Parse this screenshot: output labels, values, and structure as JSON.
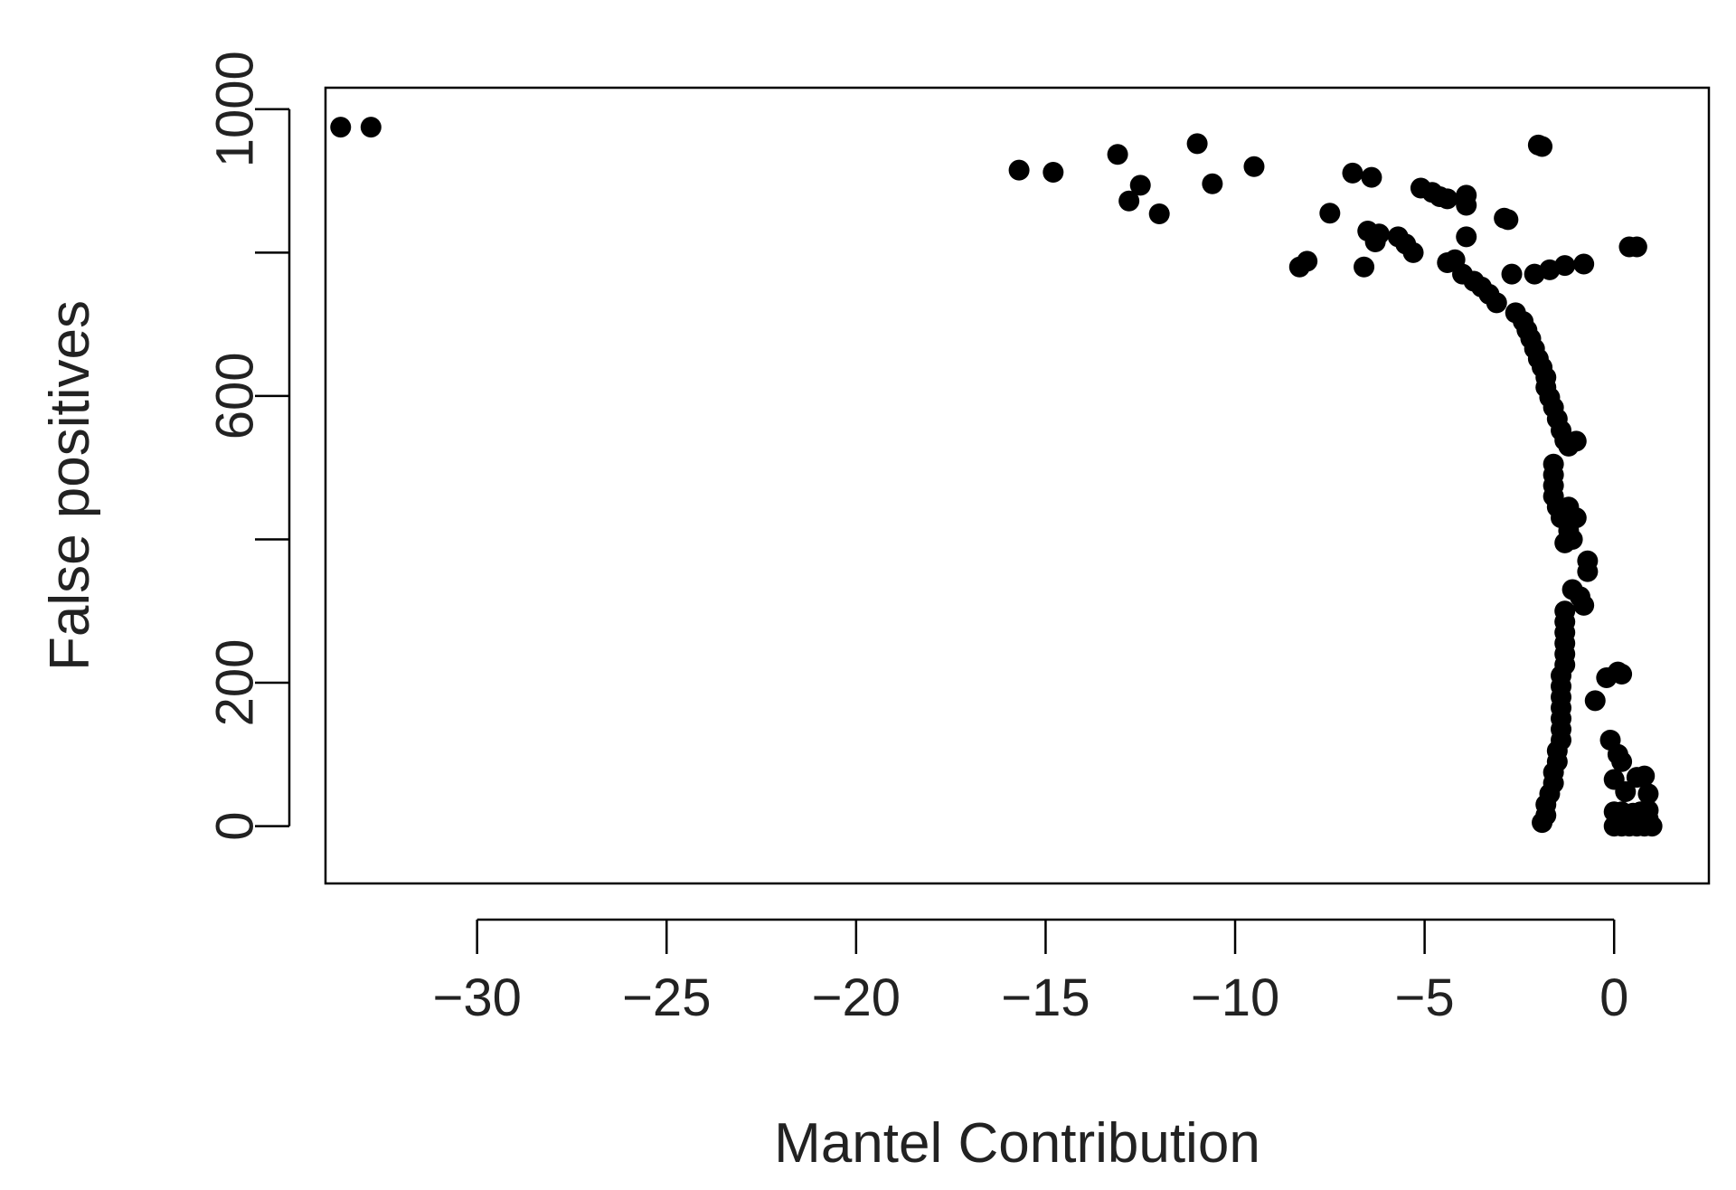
{
  "chart_data": {
    "type": "scatter",
    "xlabel": "Mantel Contribution",
    "ylabel": "False positives",
    "xlim": [
      -34,
      2.5
    ],
    "ylim": [
      -80,
      1030
    ],
    "xticks": [
      -30,
      -25,
      -20,
      -15,
      -10,
      -5,
      0
    ],
    "xtick_labels": [
      "−30",
      "−25",
      "−20",
      "−15",
      "−10",
      "−5",
      "0"
    ],
    "yticks": [
      0,
      200,
      400,
      600,
      800,
      1000
    ],
    "ytick_labels": [
      "0",
      "200",
      "",
      "600",
      "",
      "1000"
    ],
    "point_color": "#000000",
    "series": [
      {
        "values": [
          [
            -33.6,
            975
          ],
          [
            -32.8,
            975
          ],
          [
            -15.7,
            915
          ],
          [
            -14.8,
            912
          ],
          [
            -13.1,
            937
          ],
          [
            -12.8,
            872
          ],
          [
            -12.5,
            894
          ],
          [
            -12.0,
            854
          ],
          [
            -11.0,
            952
          ],
          [
            -10.6,
            896
          ],
          [
            -9.5,
            920
          ],
          [
            -8.3,
            780
          ],
          [
            -8.1,
            788
          ],
          [
            -7.5,
            855
          ],
          [
            -6.9,
            911
          ],
          [
            -6.6,
            780
          ],
          [
            -6.4,
            905
          ],
          [
            -6.5,
            830
          ],
          [
            -6.3,
            815
          ],
          [
            -6.2,
            826
          ],
          [
            -5.7,
            822
          ],
          [
            -5.5,
            812
          ],
          [
            -5.3,
            800
          ],
          [
            -5.1,
            890
          ],
          [
            -4.8,
            884
          ],
          [
            -4.6,
            878
          ],
          [
            -4.4,
            875
          ],
          [
            -4.4,
            786
          ],
          [
            -4.2,
            790
          ],
          [
            -4.0,
            770
          ],
          [
            -3.9,
            880
          ],
          [
            -3.9,
            866
          ],
          [
            -3.9,
            822
          ],
          [
            -3.7,
            760
          ],
          [
            -3.5,
            752
          ],
          [
            -3.3,
            742
          ],
          [
            -3.1,
            730
          ],
          [
            -2.9,
            848
          ],
          [
            -2.8,
            846
          ],
          [
            -2.7,
            770
          ],
          [
            -2.6,
            716
          ],
          [
            -2.4,
            704
          ],
          [
            -2.3,
            692
          ],
          [
            -2.2,
            680
          ],
          [
            -2.1,
            666
          ],
          [
            -2.0,
            950
          ],
          [
            -1.9,
            948
          ],
          [
            -2.0,
            652
          ],
          [
            -1.9,
            640
          ],
          [
            -1.8,
            626
          ],
          [
            -1.8,
            612
          ],
          [
            -1.7,
            598
          ],
          [
            -1.6,
            584
          ],
          [
            -1.5,
            568
          ],
          [
            -1.4,
            552
          ],
          [
            -1.3,
            538
          ],
          [
            -1.2,
            530
          ],
          [
            -1.0,
            537
          ],
          [
            -2.1,
            770
          ],
          [
            -1.7,
            776
          ],
          [
            -1.3,
            782
          ],
          [
            -0.8,
            784
          ],
          [
            0.4,
            808
          ],
          [
            0.6,
            808
          ],
          [
            -1.6,
            505
          ],
          [
            -1.6,
            490
          ],
          [
            -1.6,
            475
          ],
          [
            -1.6,
            460
          ],
          [
            -1.5,
            445
          ],
          [
            -1.4,
            430
          ],
          [
            -1.2,
            445
          ],
          [
            -1.0,
            430
          ],
          [
            -1.2,
            412
          ],
          [
            -1.3,
            395
          ],
          [
            -1.1,
            400
          ],
          [
            -0.7,
            370
          ],
          [
            -0.7,
            355
          ],
          [
            -1.1,
            330
          ],
          [
            -0.9,
            320
          ],
          [
            -0.8,
            308
          ],
          [
            -1.3,
            300
          ],
          [
            -1.3,
            285
          ],
          [
            -1.3,
            270
          ],
          [
            -1.3,
            255
          ],
          [
            -1.3,
            240
          ],
          [
            -1.3,
            225
          ],
          [
            -1.4,
            210
          ],
          [
            -1.4,
            195
          ],
          [
            -1.4,
            180
          ],
          [
            -1.4,
            165
          ],
          [
            -1.4,
            150
          ],
          [
            -1.4,
            135
          ],
          [
            -1.4,
            120
          ],
          [
            -1.5,
            105
          ],
          [
            -1.5,
            90
          ],
          [
            -1.6,
            75
          ],
          [
            -1.6,
            60
          ],
          [
            -1.7,
            45
          ],
          [
            -1.8,
            30
          ],
          [
            -1.8,
            15
          ],
          [
            -1.9,
            5
          ],
          [
            -0.2,
            207
          ],
          [
            0.1,
            215
          ],
          [
            0.2,
            212
          ],
          [
            -0.5,
            175
          ],
          [
            -0.1,
            120
          ],
          [
            0.1,
            100
          ],
          [
            0.2,
            90
          ],
          [
            0.0,
            65
          ],
          [
            0.6,
            68
          ],
          [
            0.8,
            70
          ],
          [
            0.9,
            45
          ],
          [
            0.3,
            48
          ],
          [
            0.0,
            20
          ],
          [
            0.2,
            20
          ],
          [
            0.5,
            18
          ],
          [
            0.7,
            20
          ],
          [
            0.9,
            22
          ],
          [
            0.0,
            0
          ],
          [
            0.2,
            0
          ],
          [
            0.4,
            0
          ],
          [
            0.6,
            0
          ],
          [
            0.8,
            0
          ],
          [
            1.0,
            0
          ],
          [
            0.1,
            8
          ],
          [
            0.5,
            10
          ],
          [
            0.9,
            10
          ]
        ]
      }
    ]
  }
}
